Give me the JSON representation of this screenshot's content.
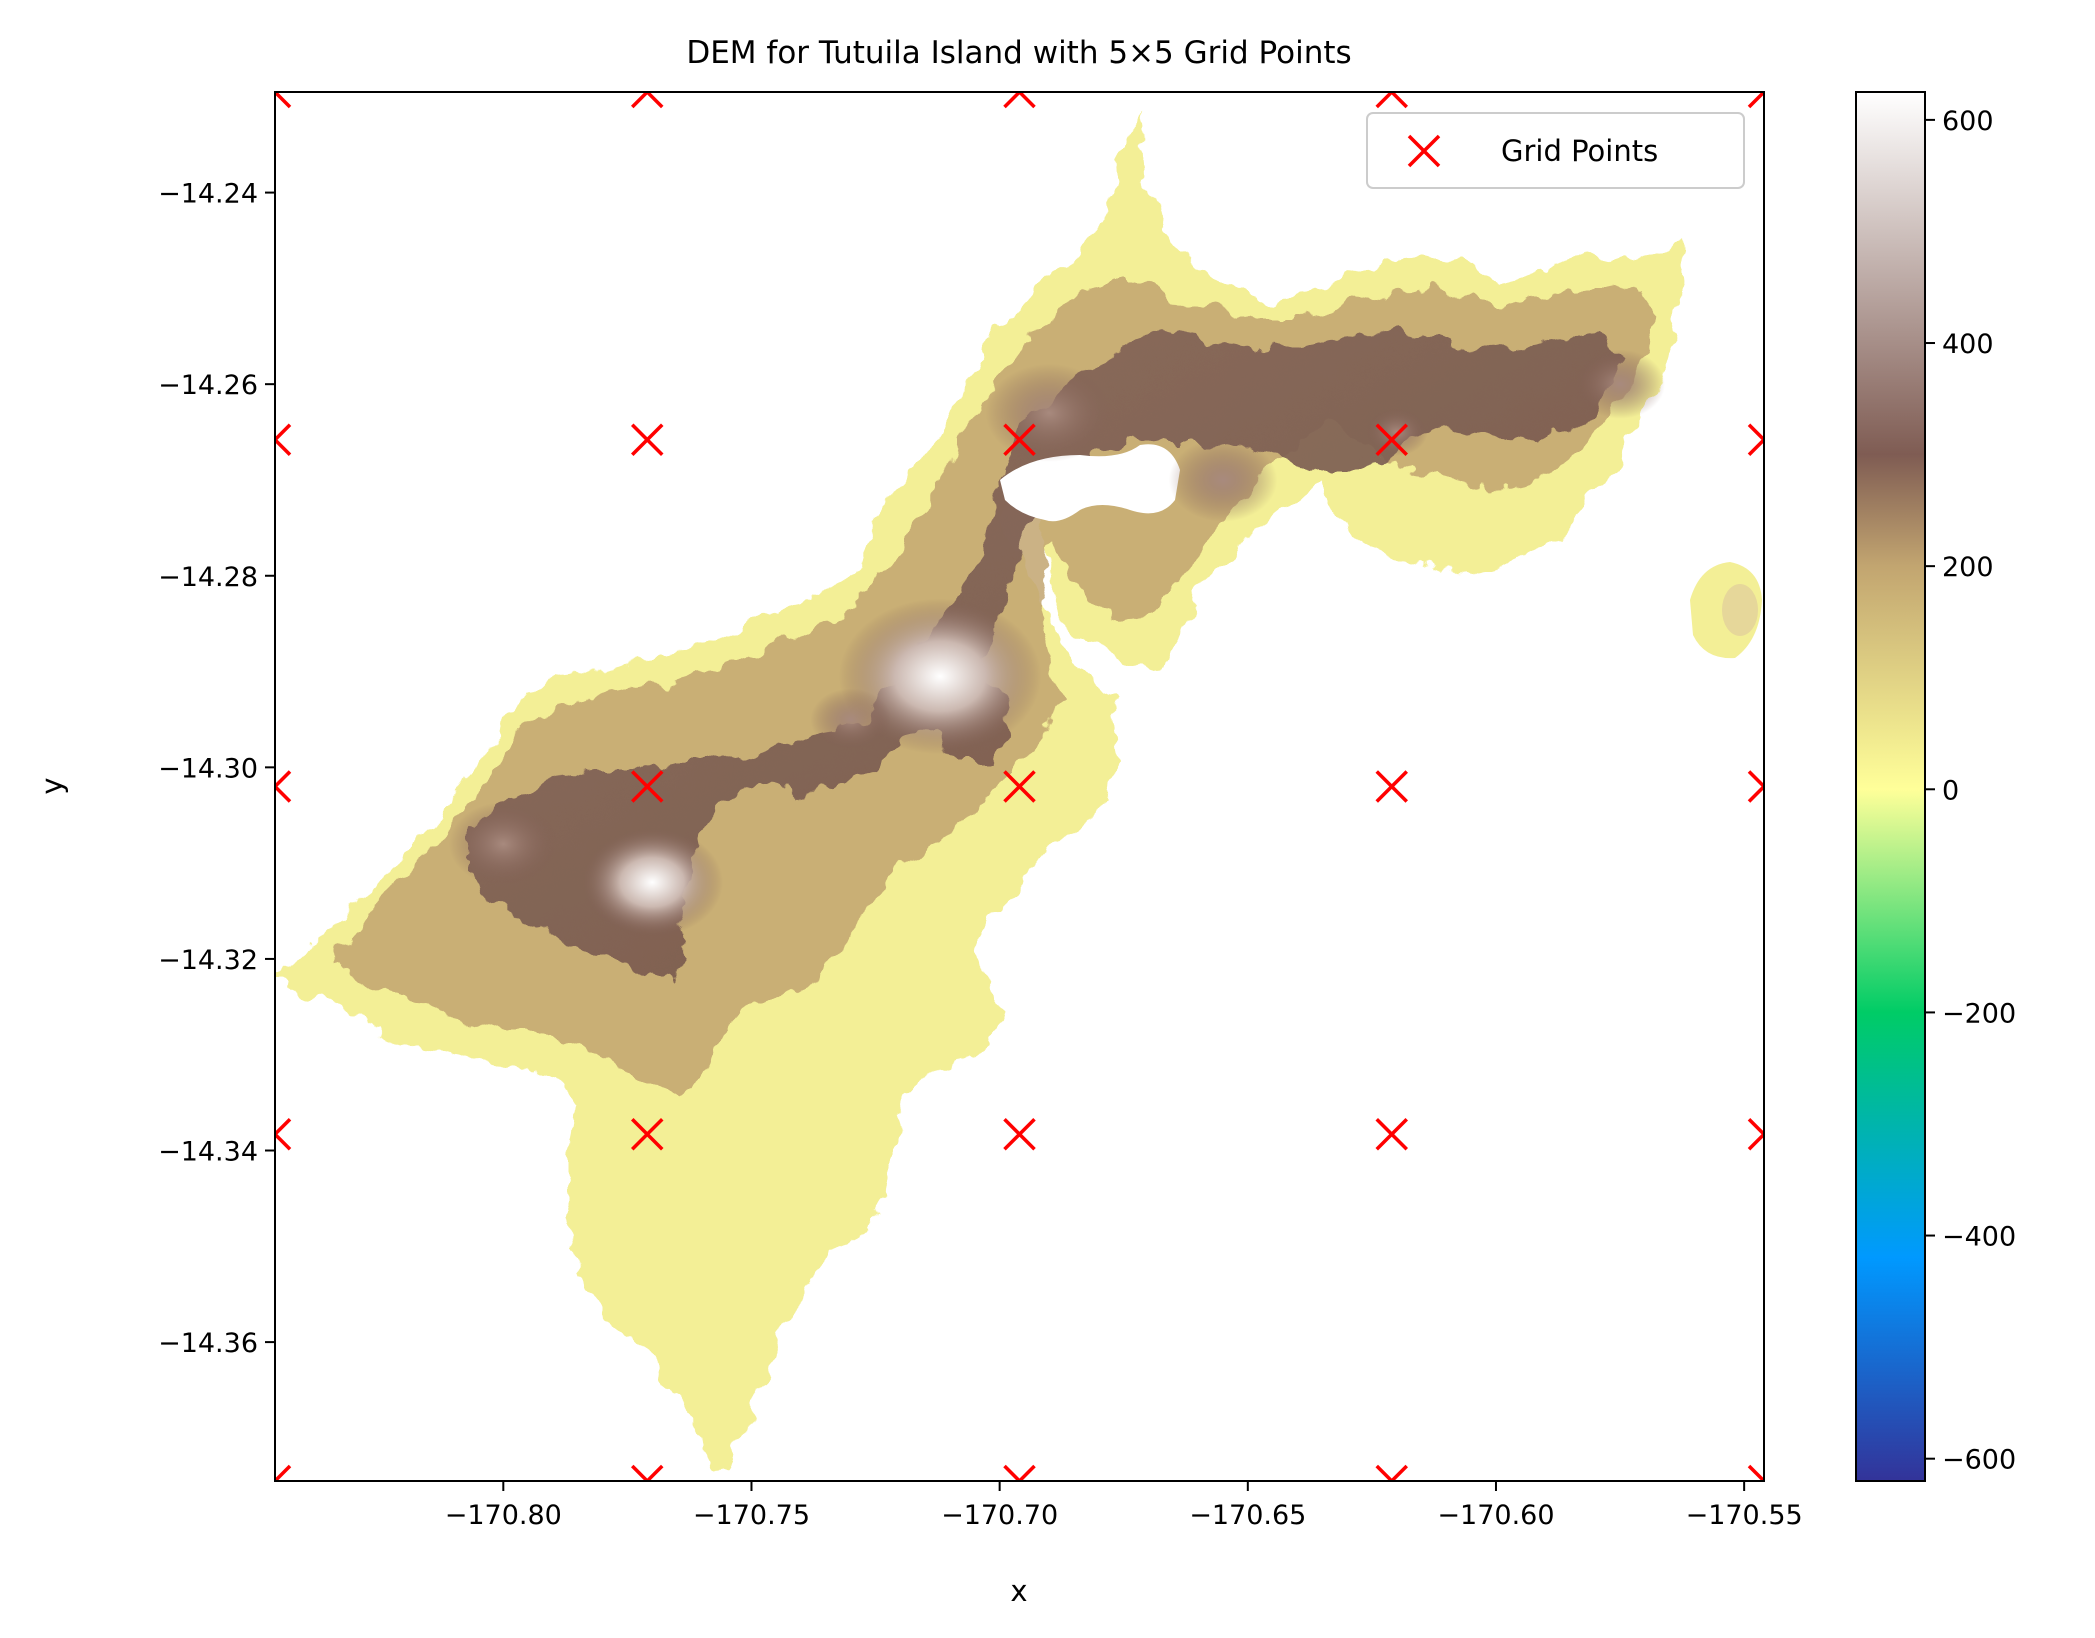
{
  "chart_data": {
    "type": "heatmap",
    "title": "DEM for Tutuila Island with 5×5 Grid Points",
    "xlabel": "x",
    "ylabel": "y",
    "xlim": [
      -170.846,
      -170.546
    ],
    "ylim": [
      -14.3745,
      -14.2295
    ],
    "x_ticks": [
      -170.8,
      -170.75,
      -170.7,
      -170.65,
      -170.6,
      -170.55
    ],
    "x_tick_labels": [
      "−170.80",
      "−170.75",
      "−170.70",
      "−170.65",
      "−170.60",
      "−170.55"
    ],
    "y_ticks": [
      -14.24,
      -14.26,
      -14.28,
      -14.3,
      -14.32,
      -14.34,
      -14.36
    ],
    "y_tick_labels": [
      "−14.24",
      "−14.26",
      "−14.28",
      "−14.30",
      "−14.32",
      "−14.34",
      "−14.36"
    ],
    "colormap": "terrain",
    "colorbar": {
      "vmin": -620,
      "vmax": 625,
      "ticks": [
        600,
        400,
        200,
        0,
        -200,
        -400,
        -600
      ],
      "tick_labels": [
        "600",
        "400",
        "200",
        "0",
        "−200",
        "−400",
        "−600"
      ],
      "stops": [
        {
          "value": -620,
          "color": "#333399"
        },
        {
          "value": -420,
          "color": "#0099ff"
        },
        {
          "value": -200,
          "color": "#00cc66"
        },
        {
          "value": 0,
          "color": "#ffff99"
        },
        {
          "value": 200,
          "color": "#c2a570"
        },
        {
          "value": 300,
          "color": "#7f5c53"
        },
        {
          "value": 625,
          "color": "#ffffff"
        }
      ]
    },
    "grid": false,
    "legend": {
      "position": "top-right",
      "entries": [
        {
          "label": "Grid Points",
          "marker": "x",
          "color": "#ff0000"
        }
      ]
    },
    "grid_points": {
      "name": "Grid Points",
      "x": [
        -170.846,
        -170.771,
        -170.696,
        -170.621,
        -170.546
      ],
      "y": [
        -14.2295,
        -14.2658,
        -14.302,
        -14.3383,
        -14.3745
      ]
    },
    "elevation_features": [
      {
        "x": -170.712,
        "y": -14.2905,
        "value": 560
      },
      {
        "x": -170.77,
        "y": -14.312,
        "value": 430
      },
      {
        "x": -170.8,
        "y": -14.308,
        "value": 360
      },
      {
        "x": -170.69,
        "y": -14.263,
        "value": 400
      },
      {
        "x": -170.655,
        "y": -14.27,
        "value": 360
      },
      {
        "x": -170.575,
        "y": -14.26,
        "value": 320
      },
      {
        "x": -170.62,
        "y": -14.265,
        "value": 260
      },
      {
        "x": -170.73,
        "y": -14.295,
        "value": 300
      }
    ]
  }
}
